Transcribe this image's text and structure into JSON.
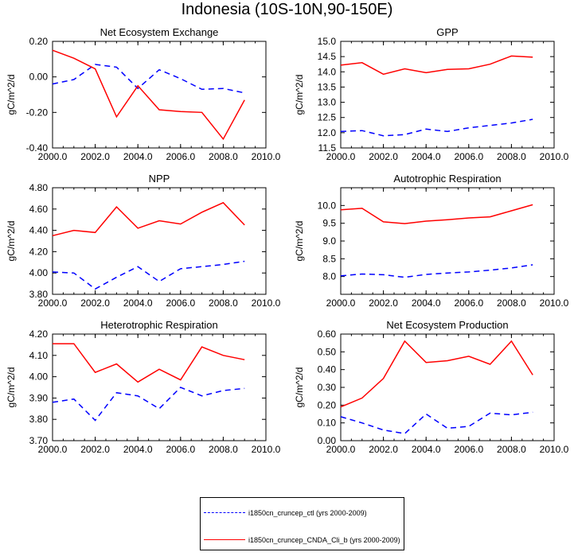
{
  "title": "Indonesia (10S-10N,90-150E)",
  "colors": {
    "ctl": "#0000ff",
    "cnda": "#ff0000"
  },
  "legend": [
    {
      "key": "ctl",
      "label": "i1850cn_cruncep_ctl (yrs 2000-2009)",
      "style": "dashed"
    },
    {
      "key": "cnda",
      "label": "i1850cn_cruncep_CNDA_Cli_b (yrs 2000-2009)",
      "style": "solid"
    }
  ],
  "chart_data": [
    {
      "type": "line",
      "title": "Net Ecosystem Exchange",
      "ylabel": "gC/m^2/d",
      "xlim": [
        2000,
        2010
      ],
      "ylim": [
        -0.4,
        0.2
      ],
      "xticks": [
        "2000.0",
        "2002.0",
        "2004.0",
        "2006.0",
        "2008.0",
        "2010.0"
      ],
      "yticks": [
        "-0.40",
        "-0.20",
        "0.00",
        "0.20"
      ],
      "x": [
        2000,
        2001,
        2002,
        2003,
        2004,
        2005,
        2006,
        2007,
        2008,
        2009
      ],
      "series": [
        {
          "name": "i1850cn_cruncep_ctl (yrs 2000-2009)",
          "key": "ctl",
          "values": [
            -0.04,
            -0.015,
            0.07,
            0.055,
            -0.065,
            0.04,
            -0.01,
            -0.07,
            -0.065,
            -0.09
          ]
        },
        {
          "name": "i1850cn_cruncep_CNDA_Cli_b (yrs 2000-2009)",
          "key": "cnda",
          "values": [
            0.15,
            0.105,
            0.045,
            -0.225,
            -0.05,
            -0.185,
            -0.195,
            -0.2,
            -0.35,
            -0.13
          ]
        }
      ]
    },
    {
      "type": "line",
      "title": "GPP",
      "ylabel": "gC/m^2/d",
      "xlim": [
        2000,
        2010
      ],
      "ylim": [
        11.5,
        15.0
      ],
      "xticks": [
        "2000.0",
        "2002.0",
        "2004.0",
        "2006.0",
        "2008.0",
        "2010.0"
      ],
      "yticks": [
        "11.5",
        "12.0",
        "12.5",
        "13.0",
        "13.5",
        "14.0",
        "14.5",
        "15.0"
      ],
      "x": [
        2000,
        2001,
        2002,
        2003,
        2004,
        2005,
        2006,
        2007,
        2008,
        2009
      ],
      "series": [
        {
          "name": "i1850cn_cruncep_ctl (yrs 2000-2009)",
          "key": "ctl",
          "values": [
            12.04,
            12.07,
            11.9,
            11.94,
            12.12,
            12.04,
            12.16,
            12.24,
            12.32,
            12.44
          ]
        },
        {
          "name": "i1850cn_cruncep_CNDA_Cli_b (yrs 2000-2009)",
          "key": "cnda",
          "values": [
            14.22,
            14.3,
            13.92,
            14.1,
            13.97,
            14.08,
            14.1,
            14.25,
            14.52,
            14.48
          ]
        }
      ]
    },
    {
      "type": "line",
      "title": "NPP",
      "ylabel": "gC/m^2/d",
      "xlim": [
        2000,
        2010
      ],
      "ylim": [
        3.8,
        4.8
      ],
      "xticks": [
        "2000.0",
        "2002.0",
        "2004.0",
        "2006.0",
        "2008.0",
        "2010.0"
      ],
      "yticks": [
        "3.80",
        "4.00",
        "4.20",
        "4.40",
        "4.60",
        "4.80"
      ],
      "x": [
        2000,
        2001,
        2002,
        2003,
        2004,
        2005,
        2006,
        2007,
        2008,
        2009
      ],
      "series": [
        {
          "name": "i1850cn_cruncep_ctl (yrs 2000-2009)",
          "key": "ctl",
          "values": [
            4.01,
            4.0,
            3.85,
            3.96,
            4.06,
            3.92,
            4.04,
            4.06,
            4.08,
            4.11
          ]
        },
        {
          "name": "i1850cn_cruncep_CNDA_Cli_b (yrs 2000-2009)",
          "key": "cnda",
          "values": [
            4.35,
            4.4,
            4.38,
            4.62,
            4.42,
            4.49,
            4.46,
            4.57,
            4.66,
            4.45
          ]
        }
      ]
    },
    {
      "type": "line",
      "title": "Autotrophic Respiration",
      "ylabel": "gC/m^2/d",
      "xlim": [
        2000,
        2010
      ],
      "ylim": [
        7.5,
        10.5
      ],
      "xticks": [
        "2000.0",
        "2002.0",
        "2004.0",
        "2006.0",
        "2008.0",
        "2010.0"
      ],
      "yticks": [
        "8.0",
        "8.5",
        "9.0",
        "9.5",
        "10.0"
      ],
      "x": [
        2000,
        2001,
        2002,
        2003,
        2004,
        2005,
        2006,
        2007,
        2008,
        2009
      ],
      "series": [
        {
          "name": "i1850cn_cruncep_ctl (yrs 2000-2009)",
          "key": "ctl",
          "values": [
            8.02,
            8.07,
            8.05,
            7.98,
            8.06,
            8.1,
            8.13,
            8.18,
            8.24,
            8.33
          ]
        },
        {
          "name": "i1850cn_cruncep_CNDA_Cli_b (yrs 2000-2009)",
          "key": "cnda",
          "values": [
            9.88,
            9.92,
            9.54,
            9.49,
            9.56,
            9.6,
            9.65,
            9.68,
            9.85,
            10.02
          ]
        }
      ]
    },
    {
      "type": "line",
      "title": "Heterotrophic Respiration",
      "ylabel": "gC/m^2/d",
      "xlim": [
        2000,
        2010
      ],
      "ylim": [
        3.7,
        4.2
      ],
      "xticks": [
        "2000.0",
        "2002.0",
        "2004.0",
        "2006.0",
        "2008.0",
        "2010.0"
      ],
      "yticks": [
        "3.70",
        "3.80",
        "3.90",
        "4.00",
        "4.10",
        "4.20"
      ],
      "x": [
        2000,
        2001,
        2002,
        2003,
        2004,
        2005,
        2006,
        2007,
        2008,
        2009
      ],
      "series": [
        {
          "name": "i1850cn_cruncep_ctl (yrs 2000-2009)",
          "key": "ctl",
          "values": [
            3.88,
            3.895,
            3.795,
            3.925,
            3.91,
            3.85,
            3.95,
            3.91,
            3.935,
            3.945
          ]
        },
        {
          "name": "i1850cn_cruncep_CNDA_Cli_b (yrs 2000-2009)",
          "key": "cnda",
          "values": [
            4.155,
            4.155,
            4.02,
            4.06,
            3.975,
            4.035,
            3.985,
            4.14,
            4.1,
            4.08
          ]
        }
      ]
    },
    {
      "type": "line",
      "title": "Net Ecosystem Production",
      "ylabel": "gC/m^2/d",
      "xlim": [
        2000,
        2010
      ],
      "ylim": [
        0.0,
        0.6
      ],
      "xticks": [
        "2000.0",
        "2002.0",
        "2004.0",
        "2006.0",
        "2008.0",
        "2010.0"
      ],
      "yticks": [
        "0.00",
        "0.10",
        "0.20",
        "0.30",
        "0.40",
        "0.50",
        "0.60"
      ],
      "x": [
        2000,
        2001,
        2002,
        2003,
        2004,
        2005,
        2006,
        2007,
        2008,
        2009
      ],
      "series": [
        {
          "name": "i1850cn_cruncep_ctl (yrs 2000-2009)",
          "key": "ctl",
          "values": [
            0.135,
            0.1,
            0.06,
            0.04,
            0.15,
            0.07,
            0.08,
            0.155,
            0.145,
            0.16
          ]
        },
        {
          "name": "i1850cn_cruncep_CNDA_Cli_b (yrs 2000-2009)",
          "key": "cnda",
          "values": [
            0.19,
            0.24,
            0.35,
            0.56,
            0.44,
            0.45,
            0.475,
            0.43,
            0.56,
            0.37
          ]
        }
      ]
    }
  ]
}
